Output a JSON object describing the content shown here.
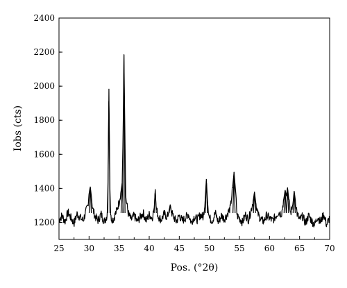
{
  "chart_data": {
    "type": "line",
    "xlabel": "Pos. (°2θ)",
    "ylabel": "Iobs (cts)",
    "xlim": [
      25,
      70
    ],
    "ylim": [
      1100,
      2400
    ],
    "xticks": [
      25,
      30,
      35,
      40,
      45,
      50,
      55,
      60,
      65,
      70
    ],
    "yticks": [
      1200,
      1400,
      1600,
      1800,
      2000,
      2200,
      2400
    ],
    "grid": false,
    "legend": "none",
    "baseline_level": 1215,
    "peaks": [
      {
        "x": 30.2,
        "y": 1410
      },
      {
        "x": 33.3,
        "y": 1985
      },
      {
        "x": 35.5,
        "y": 1430
      },
      {
        "x": 35.8,
        "y": 2185
      },
      {
        "x": 41.0,
        "y": 1395
      },
      {
        "x": 43.5,
        "y": 1305
      },
      {
        "x": 49.5,
        "y": 1455
      },
      {
        "x": 54.1,
        "y": 1495
      },
      {
        "x": 57.5,
        "y": 1380
      },
      {
        "x": 62.6,
        "y": 1390
      },
      {
        "x": 63.0,
        "y": 1405
      },
      {
        "x": 64.1,
        "y": 1385
      }
    ],
    "series": [
      {
        "x": [
          25.0,
          25.5,
          26.0,
          26.5,
          27.0,
          27.5,
          28.0,
          28.5,
          29.0,
          29.5,
          29.8,
          30.0,
          30.2,
          30.4,
          30.6,
          31.0,
          31.5,
          32.0,
          32.5,
          33.0,
          33.15,
          33.3,
          33.45,
          33.6,
          34.0,
          34.5,
          35.0,
          35.3,
          35.5,
          35.65,
          35.8,
          35.95,
          36.1,
          36.5,
          37.0,
          37.5,
          38.0,
          38.5,
          39.0,
          39.5,
          40.0,
          40.5,
          40.85,
          41.0,
          41.15,
          41.5,
          42.0,
          42.5,
          43.0,
          43.3,
          43.5,
          43.7,
          44.0,
          44.5,
          45.0,
          45.5,
          46.0,
          46.5,
          47.0,
          47.5,
          48.0,
          48.5,
          49.0,
          49.3,
          49.5,
          49.7,
          50.0,
          50.5,
          51.0,
          51.5,
          52.0,
          52.5,
          53.0,
          53.5,
          53.85,
          54.1,
          54.35,
          54.6,
          55.0,
          55.5,
          56.0,
          56.5,
          57.0,
          57.3,
          57.5,
          57.7,
          58.0,
          58.5,
          59.0,
          59.5,
          60.0,
          60.5,
          61.0,
          61.5,
          62.0,
          62.3,
          62.6,
          62.8,
          63.0,
          63.2,
          63.5,
          63.9,
          64.1,
          64.3,
          64.6,
          65.0,
          65.5,
          66.0,
          66.5,
          67.0,
          67.5,
          68.0,
          68.5,
          69.0,
          69.5,
          70.0
        ],
        "y": [
          1215,
          1240,
          1205,
          1260,
          1225,
          1195,
          1250,
          1230,
          1210,
          1265,
          1300,
          1370,
          1410,
          1350,
          1280,
          1235,
          1210,
          1250,
          1205,
          1240,
          1420,
          1985,
          1420,
          1230,
          1215,
          1260,
          1320,
          1380,
          1430,
          1700,
          2185,
          1750,
          1350,
          1255,
          1215,
          1240,
          1205,
          1230,
          1255,
          1210,
          1245,
          1225,
          1290,
          1395,
          1290,
          1235,
          1215,
          1250,
          1230,
          1270,
          1305,
          1260,
          1235,
          1205,
          1240,
          1210,
          1225,
          1250,
          1200,
          1235,
          1215,
          1245,
          1230,
          1330,
          1455,
          1320,
          1225,
          1210,
          1255,
          1200,
          1240,
          1220,
          1250,
          1285,
          1400,
          1495,
          1390,
          1240,
          1225,
          1200,
          1245,
          1215,
          1280,
          1330,
          1380,
          1320,
          1255,
          1220,
          1205,
          1240,
          1225,
          1210,
          1235,
          1260,
          1250,
          1320,
          1390,
          1355,
          1405,
          1340,
          1250,
          1310,
          1385,
          1330,
          1250,
          1215,
          1235,
          1195,
          1240,
          1210,
          1185,
          1235,
          1200,
          1250,
          1185,
          1230
        ]
      }
    ]
  }
}
